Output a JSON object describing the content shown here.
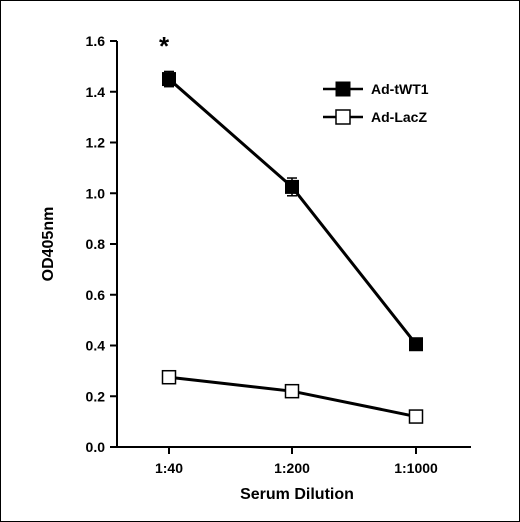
{
  "chart_data": {
    "type": "line",
    "categories": [
      "1:40",
      "1:200",
      "1:1000"
    ],
    "xlabel": "Serum Dilution",
    "ylabel": "OD405nm",
    "ylim": [
      0,
      1.6
    ],
    "yticks": [
      "0.0",
      "0.2",
      "0.4",
      "0.6",
      "0.8",
      "1.0",
      "1.2",
      "1.4",
      "1.6"
    ],
    "grid": false,
    "legend_position": "top-right",
    "series": [
      {
        "name": "Ad-tWT1",
        "values": [
          1.45,
          1.025,
          0.405
        ],
        "errors": [
          0.03,
          0.035,
          0.01
        ],
        "marker": "filled-square",
        "color": "#000000"
      },
      {
        "name": "Ad-LacZ",
        "values": [
          0.275,
          0.22,
          0.12
        ],
        "errors": [
          0.0,
          0.0,
          0.0
        ],
        "marker": "open-square",
        "color": "#000000"
      }
    ],
    "annotations": [
      {
        "text": "*",
        "category": "1:40"
      }
    ]
  }
}
